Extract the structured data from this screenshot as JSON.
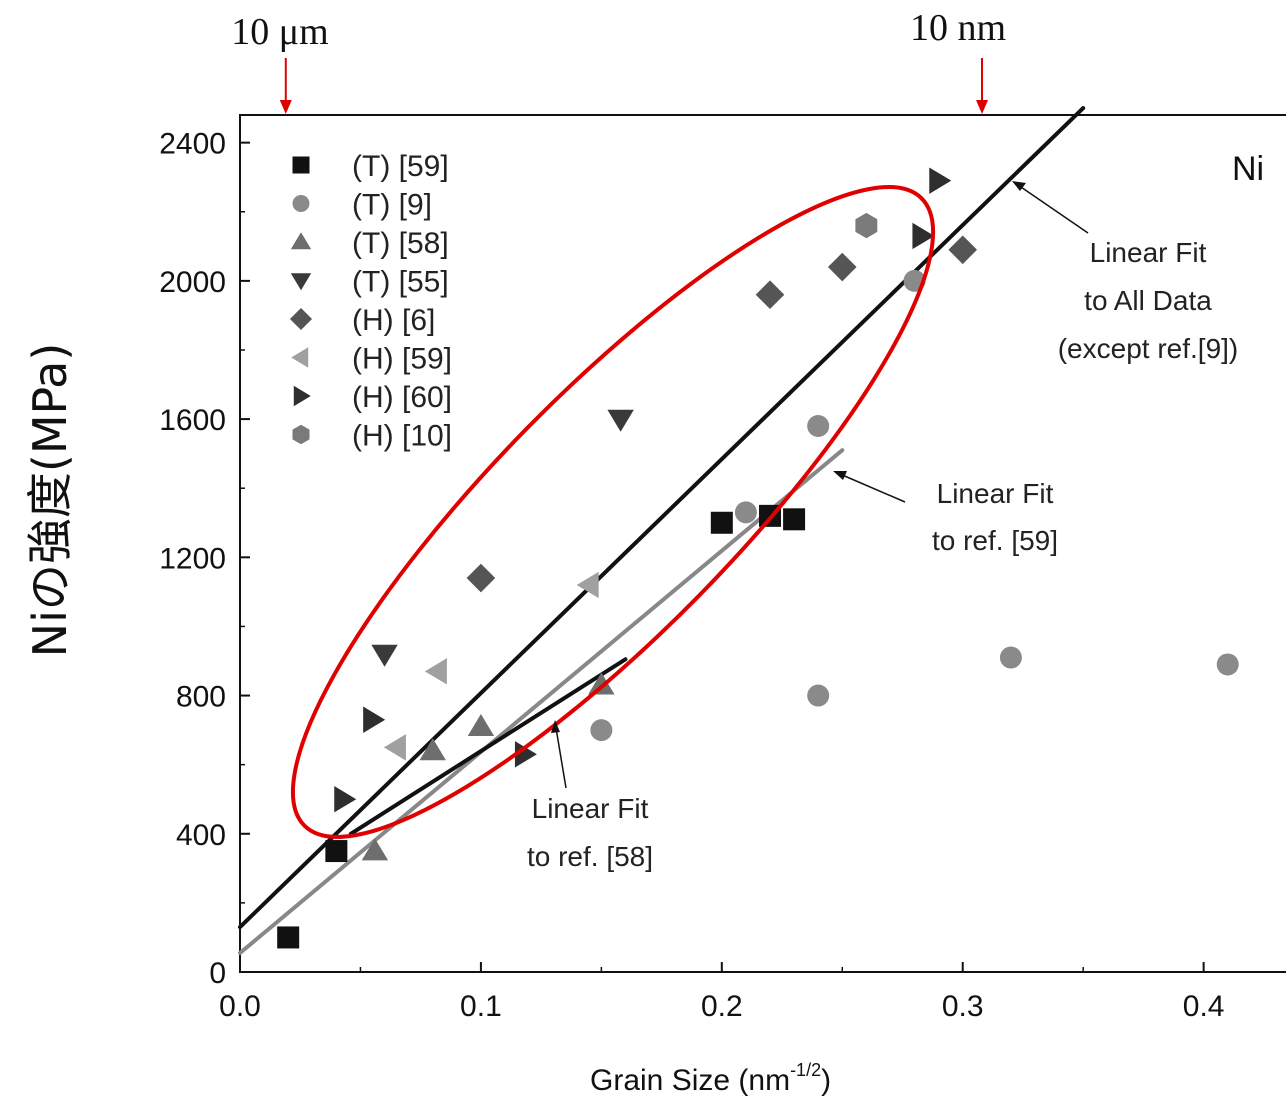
{
  "chart_data": {
    "type": "scatter",
    "title": "",
    "panel_label": "Ni",
    "xlabel": "Grain Size (nm",
    "xlabel_sup": "-1/2",
    "xlabel_close": ")",
    "ylabel": "Niの強度(MPa)",
    "xlim": [
      0.0,
      0.44
    ],
    "ylim": [
      0,
      2480
    ],
    "xticks": [
      "0.0",
      "0.1",
      "0.2",
      "0.3",
      "0.4"
    ],
    "yticks": [
      "0",
      "400",
      "800",
      "1200",
      "1600",
      "2000",
      "2400"
    ],
    "top_markers": [
      {
        "label": "10 μm",
        "x": 0.019
      },
      {
        "label": "10 nm",
        "x": 0.308
      }
    ],
    "series": [
      {
        "name": "(T) [59]",
        "marker": "square",
        "color": "#111111",
        "points": [
          [
            0.02,
            100
          ],
          [
            0.04,
            350
          ],
          [
            0.2,
            1300
          ],
          [
            0.22,
            1320
          ],
          [
            0.23,
            1310
          ]
        ]
      },
      {
        "name": "(T) [9]",
        "marker": "circle",
        "color": "#8a8a8a",
        "points": [
          [
            0.15,
            700
          ],
          [
            0.21,
            1330
          ],
          [
            0.24,
            800
          ],
          [
            0.24,
            1580
          ],
          [
            0.28,
            2000
          ],
          [
            0.32,
            910
          ],
          [
            0.41,
            890
          ]
        ]
      },
      {
        "name": "(T) [58]",
        "marker": "triangle-up",
        "color": "#6e6e6e",
        "points": [
          [
            0.056,
            350
          ],
          [
            0.08,
            640
          ],
          [
            0.1,
            710
          ],
          [
            0.15,
            830
          ]
        ]
      },
      {
        "name": "(T) [55]",
        "marker": "triangle-down",
        "color": "#3a3a3a",
        "points": [
          [
            0.06,
            920
          ],
          [
            0.158,
            1600
          ]
        ]
      },
      {
        "name": "(H) [6]",
        "marker": "diamond",
        "color": "#555555",
        "points": [
          [
            0.1,
            1140
          ],
          [
            0.22,
            1960
          ],
          [
            0.25,
            2040
          ],
          [
            0.3,
            2090
          ]
        ]
      },
      {
        "name": "(H) [59]",
        "marker": "triangle-left",
        "color": "#a0a0a0",
        "points": [
          [
            0.065,
            650
          ],
          [
            0.082,
            870
          ],
          [
            0.145,
            1120
          ]
        ]
      },
      {
        "name": "(H) [60]",
        "marker": "triangle-right",
        "color": "#2e2e2e",
        "points": [
          [
            0.043,
            500
          ],
          [
            0.055,
            730
          ],
          [
            0.118,
            630
          ],
          [
            0.283,
            2130
          ],
          [
            0.29,
            2290
          ]
        ]
      },
      {
        "name": "(H) [10]",
        "marker": "hexagon",
        "color": "#7a7a7a",
        "points": [
          [
            0.26,
            2160
          ]
        ]
      }
    ],
    "fit_lines": [
      {
        "label": "Linear Fit\nto All Data\n(except ref.[9])",
        "color": "#111111",
        "x0": 0.0,
        "y0": 130,
        "x1": 0.35,
        "y1": 2500
      },
      {
        "label": "Linear Fit\nto ref. [59]",
        "color": "#888888",
        "x0": 0.0,
        "y0": 55,
        "x1": 0.25,
        "y1": 1510
      },
      {
        "label": "Linear Fit\nto ref. [58]",
        "color": "#111111",
        "x0": 0.046,
        "y0": 400,
        "x1": 0.16,
        "y1": 905
      }
    ],
    "annotations": [
      {
        "text": "Linear Fit",
        "line": 1
      },
      {
        "text": "to All Data",
        "line": 2
      },
      {
        "text": "(except ref.[9])",
        "line": 3
      },
      {
        "text": "Linear Fit",
        "line": 1
      },
      {
        "text": "to ref. [59]",
        "line": 2
      },
      {
        "text": "Linear Fit",
        "line": 1
      },
      {
        "text": "to ref. [58]",
        "line": 2
      }
    ],
    "highlight": {
      "shape": "ellipse",
      "color": "#e00000"
    },
    "grid": false,
    "legend_position": "top-left"
  }
}
